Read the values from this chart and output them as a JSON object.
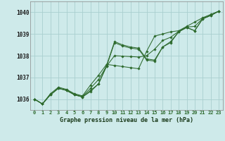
{
  "title": "Graphe pression niveau de la mer (hPa)",
  "background_color": "#ceeaea",
  "line_color": "#2d6a2d",
  "grid_color": "#aacfcf",
  "ylim": [
    1035.5,
    1040.5
  ],
  "xlim": [
    -0.5,
    23.5
  ],
  "yticks": [
    1036,
    1037,
    1038,
    1039,
    1040
  ],
  "xticks": [
    0,
    1,
    2,
    3,
    4,
    5,
    6,
    7,
    8,
    9,
    10,
    11,
    12,
    13,
    14,
    15,
    16,
    17,
    18,
    19,
    20,
    21,
    22,
    23
  ],
  "series": [
    [
      1036.0,
      1035.78,
      1036.2,
      1036.5,
      1036.4,
      1036.2,
      1036.1,
      1036.4,
      1036.7,
      1037.5,
      1038.6,
      1038.45,
      1038.35,
      1038.3,
      1037.8,
      1037.75,
      1038.4,
      1038.6,
      1039.1,
      1039.3,
      1039.15,
      1039.7,
      1039.85,
      1040.05
    ],
    [
      1036.0,
      1035.78,
      1036.25,
      1036.55,
      1036.45,
      1036.25,
      1036.15,
      1036.65,
      1037.1,
      1037.6,
      1037.55,
      1037.5,
      1037.45,
      1037.4,
      1038.2,
      1038.9,
      1039.0,
      1039.1,
      1039.15,
      1039.35,
      1039.55,
      1039.75,
      1039.9,
      1040.05
    ],
    [
      1036.0,
      1035.78,
      1036.2,
      1036.5,
      1036.4,
      1036.2,
      1036.1,
      1036.35,
      1036.7,
      1037.55,
      1038.65,
      1038.5,
      1038.4,
      1038.35,
      1037.85,
      1037.8,
      1038.4,
      1038.65,
      1039.1,
      1039.3,
      1039.15,
      1039.7,
      1039.85,
      1040.05
    ],
    [
      1036.0,
      1035.78,
      1036.2,
      1036.5,
      1036.42,
      1036.22,
      1036.12,
      1036.5,
      1036.9,
      1037.52,
      1038.0,
      1037.98,
      1037.96,
      1037.94,
      1038.0,
      1038.3,
      1038.7,
      1038.85,
      1039.12,
      1039.32,
      1039.35,
      1039.72,
      1039.87,
      1040.05
    ]
  ]
}
